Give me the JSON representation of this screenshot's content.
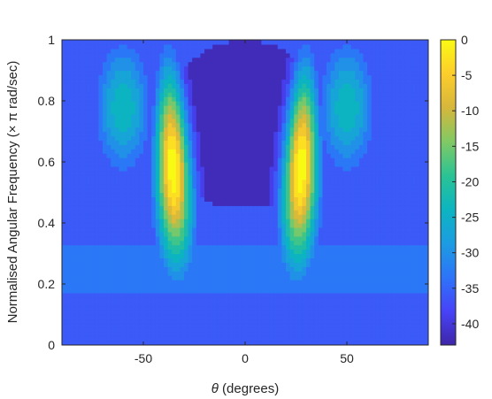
{
  "chart_data": {
    "type": "contour",
    "x_label_symbol": "θ",
    "x_label_text": " (degrees)",
    "y_label_text_before": "Normalised Angular Frequency (",
    "y_label_symbol": "× π",
    "y_label_text_after": " rad/sec)",
    "x_ticks": [
      "-50",
      "0",
      "50"
    ],
    "x_tick_values": [
      -50,
      0,
      50
    ],
    "y_ticks": [
      "0",
      "0.2",
      "0.4",
      "0.6",
      "0.8",
      "1"
    ],
    "y_tick_values": [
      0,
      0.2,
      0.4,
      0.6,
      0.8,
      1
    ],
    "xlim": [
      -90,
      90
    ],
    "ylim": [
      0,
      1
    ],
    "colorbar_ticks": [
      "0",
      "-5",
      "-10",
      "-15",
      "-20",
      "-25",
      "-30",
      "-35",
      "-40"
    ],
    "colorbar_tick_values": [
      0,
      -5,
      -10,
      -15,
      -20,
      -25,
      -30,
      -35,
      -40
    ],
    "clim": [
      -43,
      0
    ],
    "colormap": [
      "#3e26a8",
      "#4743f8",
      "#2d74f9",
      "#1c9ce2",
      "#0cb5c0",
      "#2bc394",
      "#81c964",
      "#d6b73b",
      "#fdcd2b",
      "#f9fa14"
    ],
    "beam_main_lobe_centers_deg": [
      -38,
      30
    ],
    "grating_lobe_centers_deg": [
      -60,
      50
    ],
    "peak_level_db": 0,
    "floor_level_db": -43
  }
}
